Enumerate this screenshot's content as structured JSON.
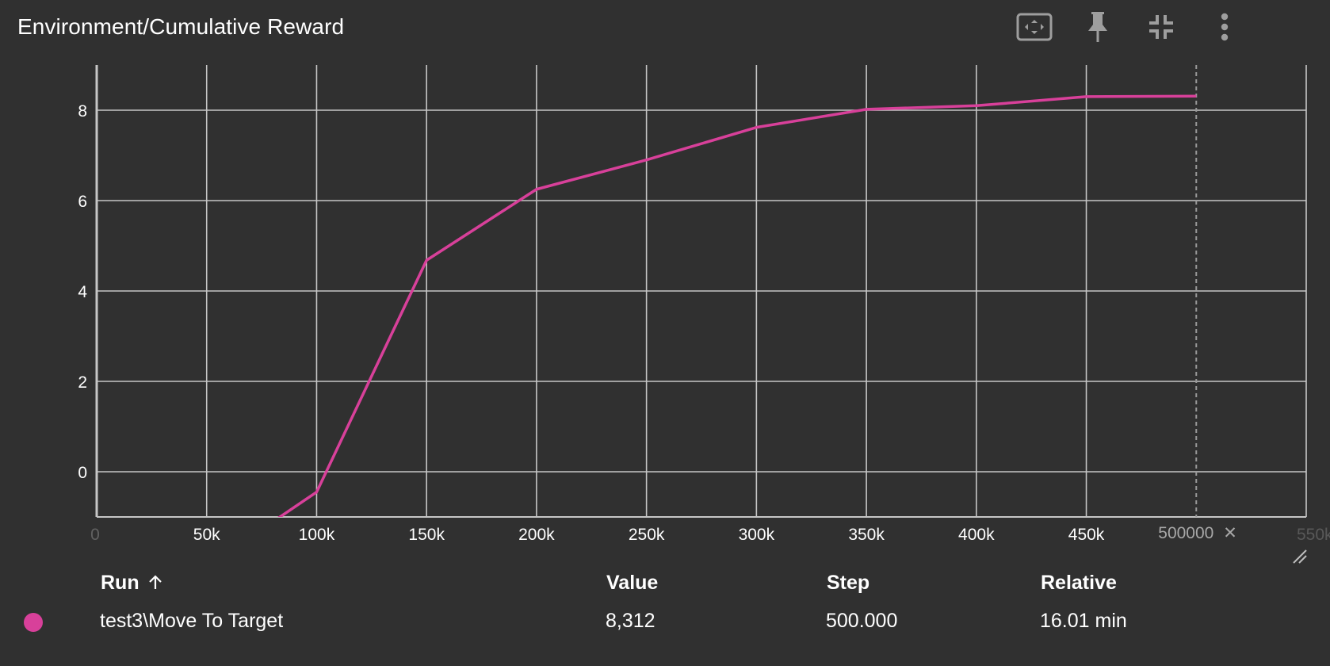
{
  "card": {
    "title": "Environment/Cumulative Reward",
    "toolbar": [
      {
        "name": "fit-domain-icon"
      },
      {
        "name": "pin-icon"
      },
      {
        "name": "collapse-icon"
      },
      {
        "name": "more-vert-icon"
      }
    ]
  },
  "chart_data": {
    "type": "line",
    "title": "Environment/Cumulative Reward",
    "xlabel": "",
    "ylabel": "",
    "xlim": [
      0,
      550000
    ],
    "ylim": [
      -1,
      9
    ],
    "grid": true,
    "x_ticks": [
      0,
      50000,
      100000,
      150000,
      200000,
      250000,
      300000,
      350000,
      400000,
      450000,
      550000
    ],
    "x_tick_labels": [
      "0",
      "50k",
      "100k",
      "150k",
      "200k",
      "250k",
      "300k",
      "350k",
      "400k",
      "450k",
      "550k"
    ],
    "y_ticks": [
      0,
      2,
      4,
      6,
      8
    ],
    "y_tick_labels": [
      "0",
      "2",
      "4",
      "6",
      "8"
    ],
    "series": [
      {
        "name": "test3\\Move To Target",
        "color": "#d8409a",
        "x": [
          50000,
          100000,
          150000,
          200000,
          250000,
          300000,
          350000,
          400000,
          450000,
          500000
        ],
        "y": [
          -2.1,
          -0.45,
          4.68,
          6.25,
          6.9,
          7.62,
          8.02,
          8.1,
          8.3,
          8.312
        ]
      }
    ],
    "hover_step": 500000,
    "hover_label": "500000"
  },
  "table": {
    "headers": {
      "run": "Run",
      "value": "Value",
      "step": "Step",
      "relative": "Relative"
    },
    "sort_icon": "arrow-upward-icon",
    "rows": [
      {
        "run": "test3\\Move To Target",
        "value": "8,312",
        "step": "500.000",
        "relative": "16.01 min",
        "color": "#d8409a"
      }
    ]
  }
}
